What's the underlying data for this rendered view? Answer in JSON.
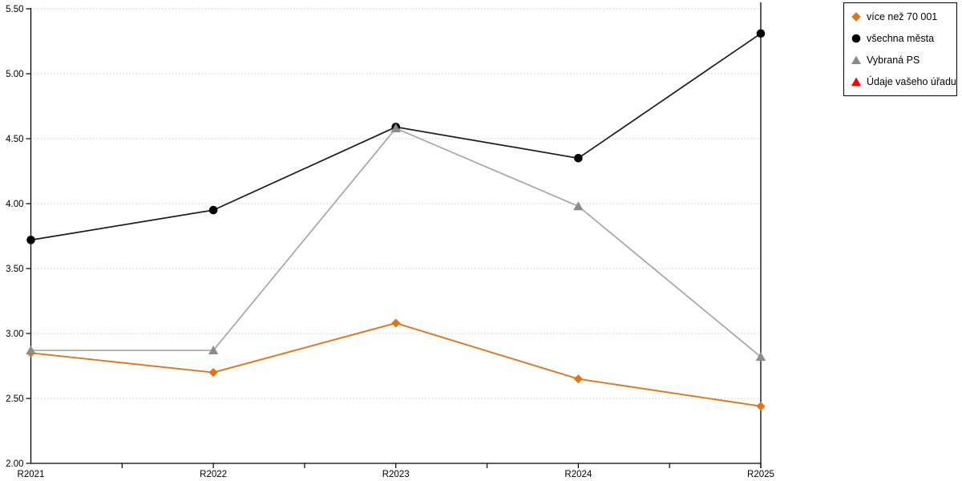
{
  "chart_data": {
    "type": "line",
    "title": "",
    "xlabel": "",
    "ylabel": "",
    "categories": [
      "R2021",
      "R2022",
      "R2023",
      "R2024",
      "R2025"
    ],
    "series": [
      {
        "name": "více než 70 001",
        "marker": "diamond",
        "color": "#DF7519",
        "line_color": "#E0761E",
        "values": [
          2.85,
          2.7,
          3.08,
          2.65,
          2.44
        ]
      },
      {
        "name": "všechna města",
        "marker": "circle",
        "color": "#000000",
        "line_color": "#1C1C1C",
        "values": [
          3.72,
          3.95,
          4.59,
          4.35,
          5.31
        ]
      },
      {
        "name": "Vybraná PS",
        "marker": "triangle",
        "color": "#8C8C8C",
        "line_color": "#A6A6A6",
        "values": [
          2.87,
          2.87,
          4.58,
          3.98,
          2.82
        ]
      },
      {
        "name": "Údaje vašeho úřadu",
        "marker": "triangle",
        "color": "#FF0000",
        "line_color": "#FF0000",
        "values": []
      }
    ],
    "ylim": [
      2.0,
      5.5
    ],
    "ytick_step": 0.5,
    "ytick_decimals": 2,
    "grid": "horizontal-dotted",
    "legend_position": "top-right",
    "x_minor_ticks_per_interval": 2
  },
  "colors": {
    "background": "#FFFFFF",
    "axis": "#000000",
    "grid": "#C8C8C8",
    "text": "#000000",
    "legend_border": "#000000"
  }
}
